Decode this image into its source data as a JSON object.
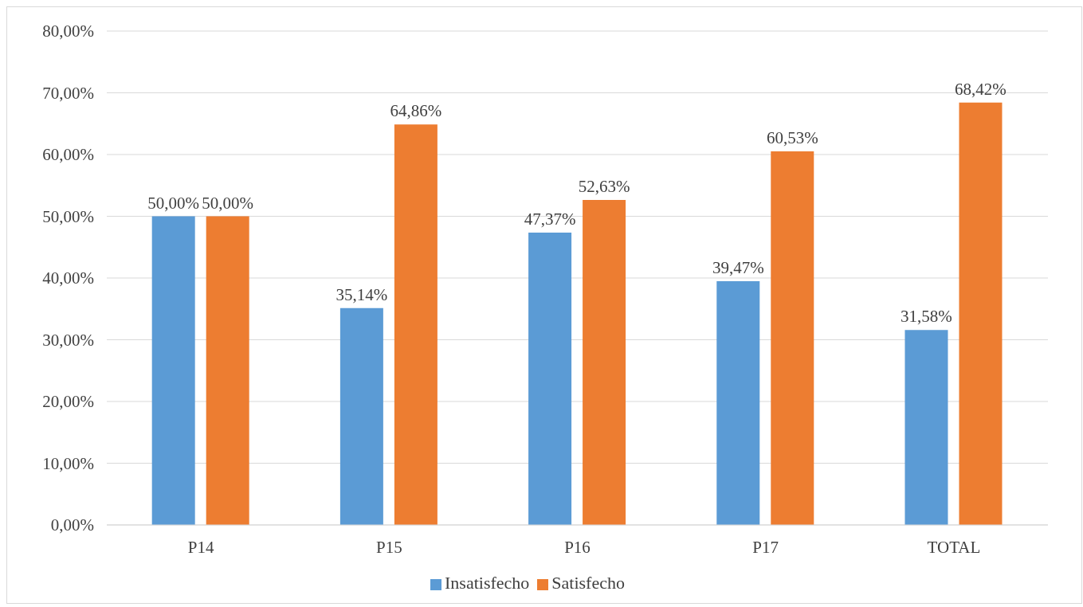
{
  "chart_data": {
    "type": "bar",
    "categories": [
      "P14",
      "P15",
      "P16",
      "P17",
      "TOTAL"
    ],
    "series": [
      {
        "name": "Insatisfecho",
        "color": "#5b9bd5",
        "values": [
          50,
          35.14,
          47.37,
          39.47,
          31.58
        ],
        "value_labels": [
          "50,00%",
          "35,14%",
          "47,37%",
          "39,47%",
          "31,58%"
        ]
      },
      {
        "name": "Satisfecho",
        "color": "#ed7d31",
        "values": [
          50,
          64.86,
          52.63,
          60.53,
          68.42
        ],
        "value_labels": [
          "50,00%",
          "64,86%",
          "52,63%",
          "60,53%",
          "68,42%"
        ]
      }
    ],
    "ylim": [
      0,
      80
    ],
    "yticks": [
      {
        "value": 0,
        "label": "0,00%"
      },
      {
        "value": 10,
        "label": "10,00%"
      },
      {
        "value": 20,
        "label": "20,00%"
      },
      {
        "value": 30,
        "label": "30,00%"
      },
      {
        "value": 40,
        "label": "40,00%"
      },
      {
        "value": 50,
        "label": "50,00%"
      },
      {
        "value": 60,
        "label": "60,00%"
      },
      {
        "value": 70,
        "label": "70,00%"
      },
      {
        "value": 80,
        "label": "80,00%"
      }
    ],
    "grid": "y",
    "legend": "bottom"
  }
}
